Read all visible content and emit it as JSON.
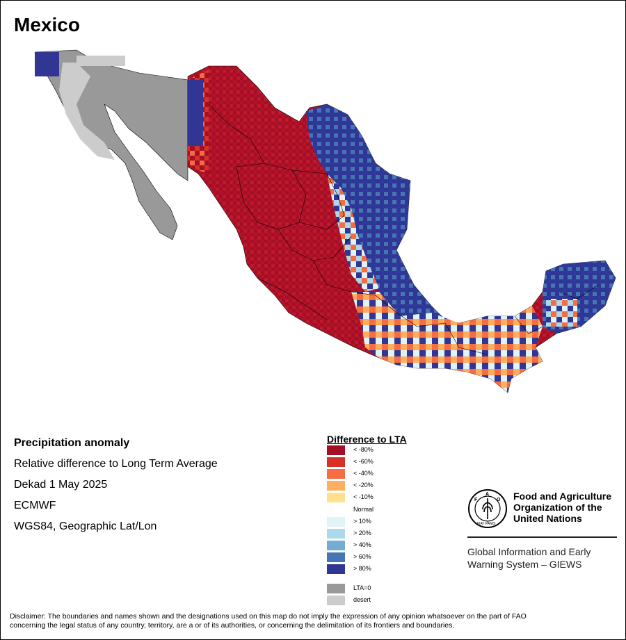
{
  "title": "Mexico",
  "info": {
    "heading": "Precipitation anomaly",
    "line1": "Relative difference to Long Term Average",
    "line2": "Dekad 1 May 2025",
    "line3": "ECMWF",
    "line4": "WGS84, Geographic Lat/Lon"
  },
  "legend": {
    "title": "Difference to LTA",
    "items": [
      {
        "label": "< -80%",
        "color": "#a50f26"
      },
      {
        "label": "< -60%",
        "color": "#d73027"
      },
      {
        "label": "< -40%",
        "color": "#f46d43"
      },
      {
        "label": "< -20%",
        "color": "#fdae61"
      },
      {
        "label": "< -10%",
        "color": "#fee090"
      },
      {
        "label": "Normal",
        "color": "#ffffff"
      },
      {
        "label": "> 10%",
        "color": "#e0f3f8"
      },
      {
        "label": "> 20%",
        "color": "#abd9e9"
      },
      {
        "label": "> 40%",
        "color": "#74add1"
      },
      {
        "label": "> 60%",
        "color": "#4575b4"
      },
      {
        "label": "> 80%",
        "color": "#313695"
      },
      {
        "label": "LTA=0",
        "color": "#999999"
      },
      {
        "label": "desert",
        "color": "#cccccc"
      }
    ]
  },
  "fao": {
    "name_line1": "Food and Agriculture",
    "name_line2": "Organization of the",
    "name_line3": "United Nations",
    "giews_line1": "Global Information and Early",
    "giews_line2": "Warning System – GIEWS",
    "logo_text": "FIAT PANIS"
  },
  "disclaimer": {
    "line1": "Disclaimer: The boundaries and names shown and the designations used on this map do not imply the expression of any opinion whatsoever on the part of FAO",
    "line2": "concerning the legal status of any country, territory, are a or of its authorities, or concerning the delimitation of its frontiers and boundaries."
  }
}
